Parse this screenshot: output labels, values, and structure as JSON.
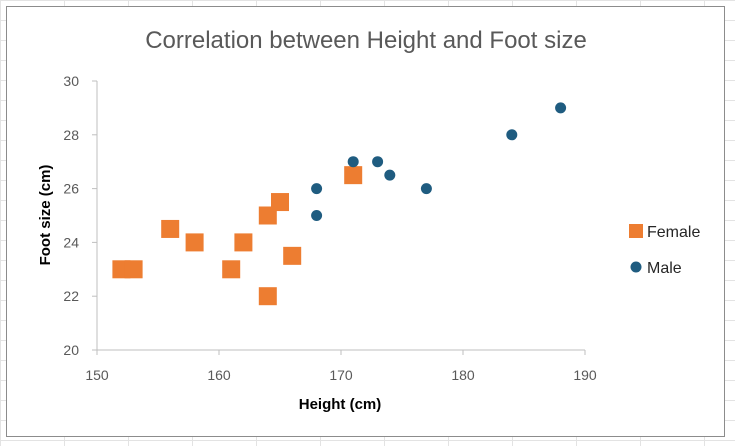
{
  "chart_data": {
    "type": "scatter",
    "title": "Correlation between Height and Foot size",
    "xlabel": "Height (cm)",
    "ylabel": "Foot size (cm)",
    "xlim": [
      150,
      190
    ],
    "ylim": [
      20,
      30
    ],
    "xticks": [
      150,
      160,
      170,
      180,
      190
    ],
    "yticks": [
      20,
      22,
      24,
      26,
      28,
      30
    ],
    "grid": false,
    "legend_position": "right",
    "series": [
      {
        "name": "Female",
        "marker": "square",
        "color": "#ED7D31",
        "points": [
          {
            "x": 152,
            "y": 23
          },
          {
            "x": 153,
            "y": 23
          },
          {
            "x": 156,
            "y": 24.5
          },
          {
            "x": 158,
            "y": 24
          },
          {
            "x": 161,
            "y": 23
          },
          {
            "x": 162,
            "y": 24
          },
          {
            "x": 164,
            "y": 22
          },
          {
            "x": 164,
            "y": 25
          },
          {
            "x": 165,
            "y": 25.5
          },
          {
            "x": 166,
            "y": 23.5
          },
          {
            "x": 171,
            "y": 26.5
          }
        ]
      },
      {
        "name": "Male",
        "marker": "circle",
        "color": "#1F5C80",
        "points": [
          {
            "x": 168,
            "y": 26
          },
          {
            "x": 168,
            "y": 25
          },
          {
            "x": 171,
            "y": 27
          },
          {
            "x": 173,
            "y": 27
          },
          {
            "x": 174,
            "y": 26.5
          },
          {
            "x": 177,
            "y": 26
          },
          {
            "x": 184,
            "y": 28
          },
          {
            "x": 188,
            "y": 29
          }
        ]
      }
    ]
  }
}
